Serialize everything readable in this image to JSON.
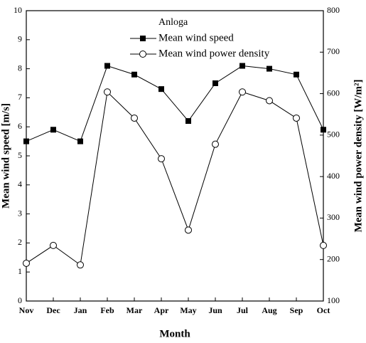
{
  "chart_data": {
    "type": "line",
    "title": "Anloga",
    "x_label": "Month",
    "y_label": "Mean wind speed [m/s]",
    "y2_label": "Mean wind power density [W/m²]",
    "categories": [
      "Nov",
      "Dec",
      "Jan",
      "Feb",
      "Mar",
      "Apr",
      "May",
      "Jun",
      "Jul",
      "Aug",
      "Sep",
      "Oct"
    ],
    "series": [
      {
        "name": "Mean wind speed",
        "color": "#000000",
        "marker": "square",
        "values": [
          5.5,
          5.9,
          5.5,
          8.1,
          7.8,
          7.3,
          6.2,
          7.5,
          8.1,
          8.0,
          7.8,
          5.9
        ]
      },
      {
        "name": "Mean wind power density",
        "color": "#000000",
        "marker": "circle",
        "axis": "y2",
        "values": [
          191,
          234,
          187,
          604,
          541,
          443,
          271,
          478,
          604,
          583,
          541,
          234
        ]
      }
    ],
    "ylim": [
      0,
      10
    ],
    "yticks": [
      0,
      1,
      2,
      3,
      4,
      5,
      6,
      7,
      8,
      9,
      10
    ],
    "y2lim": [
      100,
      800
    ],
    "y2ticks": [
      100,
      200,
      300,
      400,
      500,
      600,
      700,
      800
    ],
    "legend": "upper center"
  }
}
